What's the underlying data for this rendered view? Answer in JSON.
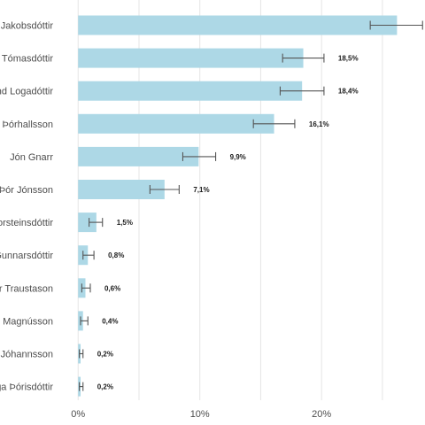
{
  "chart_data": {
    "type": "bar",
    "orientation": "horizontal",
    "title": "",
    "xlabel": "",
    "ylabel": "",
    "xlim": [
      -0.6,
      28.5
    ],
    "grid": true,
    "legend": "none",
    "colors": {
      "bar": "#add8e6",
      "error_bar": "#555555",
      "grid": "#e5e5e5"
    },
    "x_ticks": [
      {
        "value": 0,
        "label": "0%"
      },
      {
        "value": 10,
        "label": "10%"
      },
      {
        "value": 20,
        "label": "20%"
      }
    ],
    "categories": [
      "Jakobsdóttir",
      "Tómasdóttir",
      "nd Logadóttir",
      "r Þórhallsson",
      "Jón Gnarr",
      "Þór Jónsson",
      "orsteinsdóttir",
      "Gunnarsdóttir",
      "r Traustason",
      "r Magnússon",
      "Jóhannsson",
      "ga Þórisdóttir"
    ],
    "values": [
      26.2,
      18.5,
      18.4,
      16.1,
      9.9,
      7.1,
      1.5,
      0.8,
      0.6,
      0.4,
      0.2,
      0.2
    ],
    "error_low": [
      24.0,
      16.8,
      16.6,
      14.4,
      8.6,
      5.9,
      0.9,
      0.4,
      0.3,
      0.2,
      0.1,
      0.1
    ],
    "error_high": [
      28.3,
      20.2,
      20.2,
      17.8,
      11.3,
      8.3,
      2.0,
      1.3,
      1.0,
      0.8,
      0.4,
      0.4
    ],
    "data_labels": [
      "",
      "18,5%",
      "18,4%",
      "16,1%",
      "9,9%",
      "7,1%",
      "1,5%",
      "0,8%",
      "0,6%",
      "0,4%",
      "0,2%",
      "0,2%"
    ]
  }
}
